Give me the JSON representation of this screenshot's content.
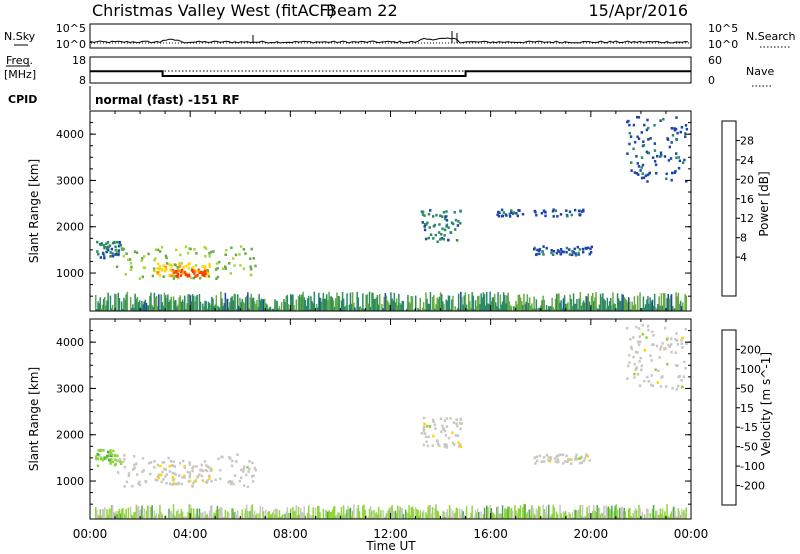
{
  "header": {
    "station": "Christmas Valley West (fitACF)",
    "beam": "Beam 22",
    "date": "15/Apr/2016"
  },
  "noise_panel": {
    "left_label": "N.Sky",
    "right_label": "N.Search",
    "left_ticks": [
      "10^5",
      "10^0"
    ],
    "right_ticks": [
      "10^5",
      "10^0"
    ]
  },
  "freq_panel": {
    "left_label_1": "Freq.",
    "left_label_2": "[MHz]",
    "right_label": "Nave",
    "left_ticks": [
      "18",
      "8"
    ],
    "right_ticks": [
      "60",
      "0"
    ]
  },
  "cpid_panel": {
    "label": "CPID",
    "text": "normal (fast) -151 RF"
  },
  "power_panel": {
    "ylabel": "Slant Range [km]",
    "cbar_label": "Power [dB]",
    "cbar_ticks": [
      "28",
      "24",
      "20",
      "16",
      "12",
      "8",
      "4"
    ],
    "cbar_colors": [
      "#0000ff",
      "#1c44aa",
      "#2a8a66",
      "#66aa44",
      "#a8d640",
      "#ffd400",
      "#ff8c00",
      "#ff3c00",
      "#e00000"
    ]
  },
  "velocity_panel": {
    "ylabel": "Slant Range [km]",
    "cbar_label": "Velocity [m s^-1]",
    "cbar_ticks": [
      "200",
      "100",
      "50",
      "15",
      "-15",
      "-50",
      "-100",
      "-200"
    ],
    "cbar_colors": [
      "#1c3cb8",
      "#2a7a6a",
      "#4ca84c",
      "#8ed63a",
      "#c8c8c0",
      "#ffd400",
      "#ff9c00",
      "#ff5a00",
      "#e00000"
    ]
  },
  "x_axis": {
    "label": "Time UT",
    "ticks": [
      "00:00",
      "04:00",
      "08:00",
      "12:00",
      "16:00",
      "20:00",
      "00:00"
    ]
  },
  "chart_data": [
    {
      "type": "line",
      "name": "noise_and_frequency",
      "freq_mhz_vs_hours": {
        "x": [
          0,
          2.9,
          2.9,
          15.0,
          15.0,
          24
        ],
        "y": [
          12.5,
          12.5,
          10.7,
          10.7,
          12.5,
          12.5
        ]
      },
      "nave_level": 40
    },
    {
      "type": "heatmap",
      "name": "power",
      "xlabel": "Time UT",
      "ylabel": "Slant Range [km]",
      "xlim": [
        0,
        24
      ],
      "ylim": [
        180,
        4500
      ],
      "yticks": [
        1000,
        2000,
        3000,
        4000
      ],
      "cbar_range": [
        0,
        32
      ],
      "features": [
        {
          "t0": 0.2,
          "t1": 1.2,
          "r0": 1350,
          "r1": 1700,
          "value": 8
        },
        {
          "t0": 1.0,
          "t1": 6.6,
          "r0": 900,
          "r1": 1600,
          "value": 14
        },
        {
          "t0": 2.6,
          "t1": 4.8,
          "r0": 950,
          "r1": 1250,
          "value": 20
        },
        {
          "t0": 3.2,
          "t1": 4.6,
          "r0": 950,
          "r1": 1100,
          "value": 26
        },
        {
          "t0": 13.2,
          "t1": 14.8,
          "r0": 1700,
          "r1": 2400,
          "value": 8
        },
        {
          "t0": 16.2,
          "t1": 19.8,
          "r0": 2250,
          "r1": 2400,
          "value": 6
        },
        {
          "t0": 17.6,
          "t1": 20.0,
          "r0": 1400,
          "r1": 1600,
          "value": 6
        },
        {
          "t0": 21.4,
          "t1": 23.8,
          "r0": 3000,
          "r1": 4400,
          "value": 6
        }
      ],
      "near_range_band": {
        "r0": 180,
        "r1": 600,
        "t0": 0.2,
        "t1": 23.8
      }
    },
    {
      "type": "heatmap",
      "name": "velocity",
      "xlabel": "Time UT",
      "ylabel": "Slant Range [km]",
      "xlim": [
        0,
        24
      ],
      "ylim": [
        180,
        4500
      ],
      "yticks": [
        1000,
        2000,
        3000,
        4000
      ],
      "cbar_range": [
        -250,
        250
      ],
      "features": [
        {
          "t0": 0.2,
          "t1": 1.2,
          "r0": 1350,
          "r1": 1700,
          "value": -60
        },
        {
          "t0": 1.0,
          "t1": 6.6,
          "r0": 900,
          "r1": 1600,
          "value": 0
        },
        {
          "t0": 2.6,
          "t1": 4.8,
          "r0": 950,
          "r1": 1400,
          "value": 10
        },
        {
          "t0": 13.2,
          "t1": 14.8,
          "r0": 1700,
          "r1": 2400,
          "value": 0
        },
        {
          "t0": 17.6,
          "t1": 20.0,
          "r0": 1400,
          "r1": 1600,
          "value": 0
        },
        {
          "t0": 21.4,
          "t1": 23.8,
          "r0": 3000,
          "r1": 4400,
          "value": 0
        }
      ],
      "near_range_band": {
        "r0": 180,
        "r1": 500,
        "t0": 0.2,
        "t1": 23.8,
        "value": -40
      }
    }
  ]
}
